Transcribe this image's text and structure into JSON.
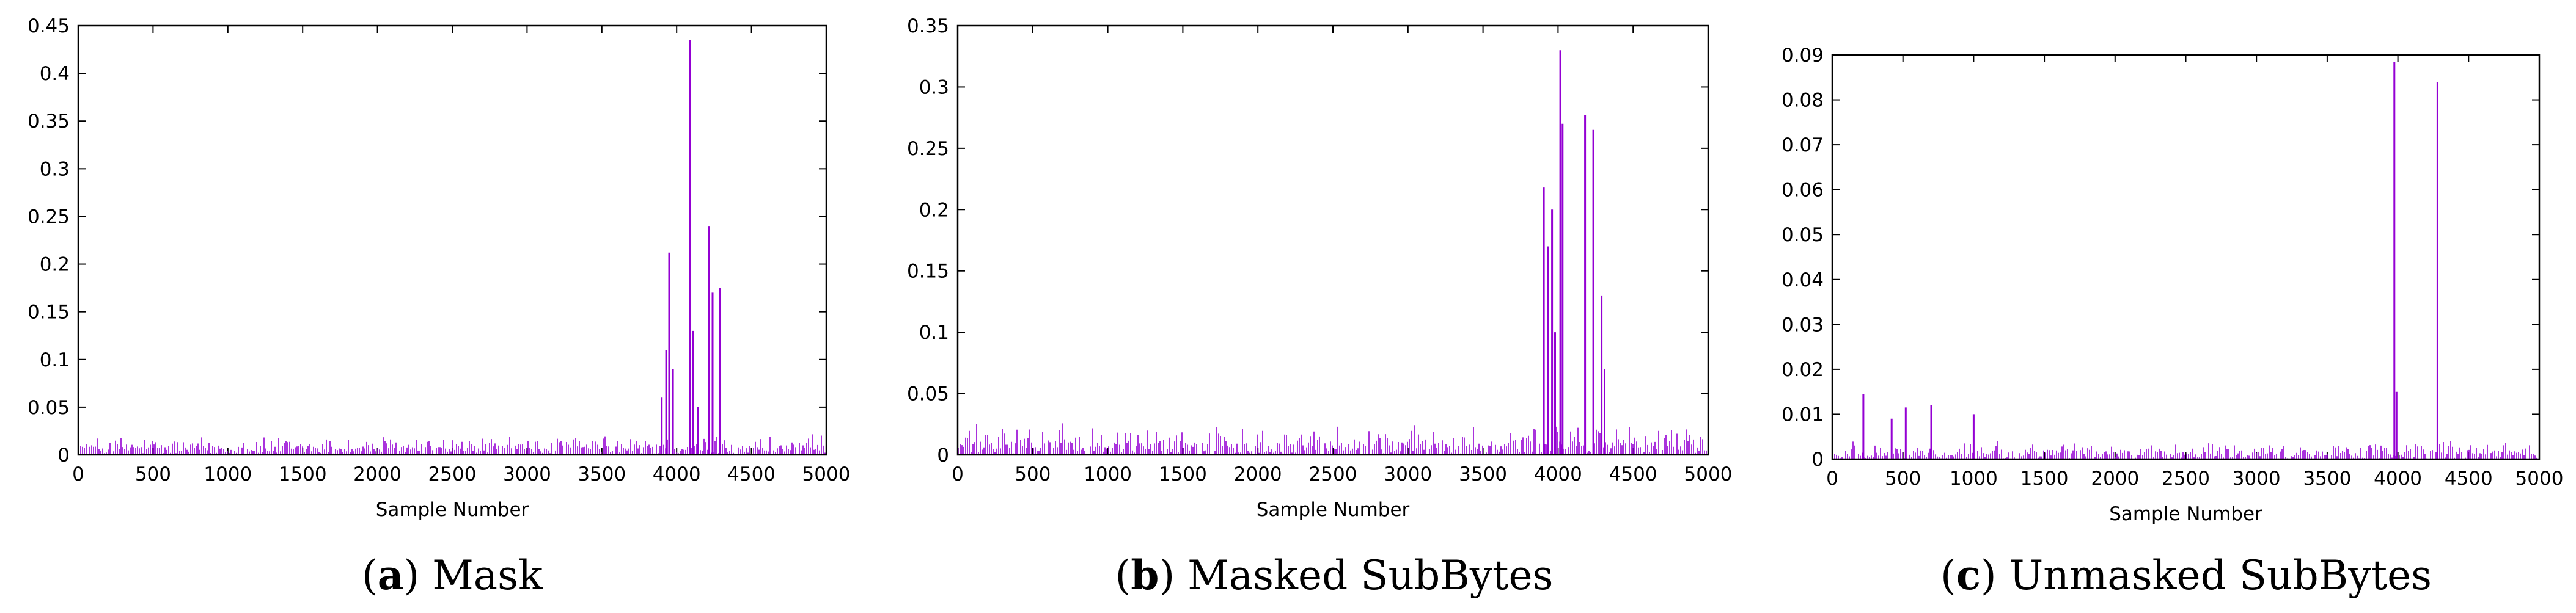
{
  "chart_data": [
    {
      "type": "line",
      "caption_letter": "a",
      "caption_text": "Mask",
      "xlabel": "Sample Number",
      "ylabel": "",
      "xlim": [
        0,
        5000
      ],
      "ylim": [
        0,
        0.45
      ],
      "xticks": [
        "0",
        "500",
        "1000",
        "1500",
        "2000",
        "2500",
        "3000",
        "3500",
        "4000",
        "4500",
        "5000"
      ],
      "yticks": [
        "0",
        "0.05",
        "0.1",
        "0.15",
        "0.2",
        "0.25",
        "0.3",
        "0.35",
        "0.4",
        "0.45"
      ],
      "color": "#9400d3",
      "noise_level": 0.022,
      "peaks": [
        {
          "x": 3900,
          "y": 0.06
        },
        {
          "x": 3930,
          "y": 0.11
        },
        {
          "x": 3950,
          "y": 0.212
        },
        {
          "x": 3975,
          "y": 0.09
        },
        {
          "x": 4090,
          "y": 0.435
        },
        {
          "x": 4110,
          "y": 0.13
        },
        {
          "x": 4215,
          "y": 0.24
        },
        {
          "x": 4240,
          "y": 0.17
        },
        {
          "x": 4290,
          "y": 0.175
        },
        {
          "x": 4140,
          "y": 0.05
        }
      ]
    },
    {
      "type": "line",
      "caption_letter": "b",
      "caption_text": "Masked SubBytes",
      "xlabel": "Sample Number",
      "ylabel": "",
      "xlim": [
        0,
        5000
      ],
      "ylim": [
        0,
        0.35
      ],
      "xticks": [
        "0",
        "500",
        "1000",
        "1500",
        "2000",
        "2500",
        "3000",
        "3500",
        "4000",
        "4500",
        "5000"
      ],
      "yticks": [
        "0",
        "0.05",
        "0.1",
        "0.15",
        "0.2",
        "0.25",
        "0.3",
        "0.35"
      ],
      "color": "#9400d3",
      "noise_level": 0.026,
      "peaks": [
        {
          "x": 3905,
          "y": 0.218
        },
        {
          "x": 3935,
          "y": 0.17
        },
        {
          "x": 3960,
          "y": 0.2
        },
        {
          "x": 3980,
          "y": 0.1
        },
        {
          "x": 4015,
          "y": 0.33
        },
        {
          "x": 4030,
          "y": 0.27
        },
        {
          "x": 4180,
          "y": 0.277
        },
        {
          "x": 4235,
          "y": 0.265
        },
        {
          "x": 4290,
          "y": 0.13
        },
        {
          "x": 4310,
          "y": 0.07
        }
      ]
    },
    {
      "type": "line",
      "caption_letter": "c",
      "caption_text": "Unmasked SubBytes",
      "xlabel": "Sample Number",
      "ylabel": "",
      "xlim": [
        0,
        5000
      ],
      "ylim": [
        0,
        0.09
      ],
      "xticks": [
        "0",
        "500",
        "1000",
        "1500",
        "2000",
        "2500",
        "3000",
        "3500",
        "4000",
        "4500",
        "5000"
      ],
      "yticks": [
        "0",
        "0.01",
        "0.02",
        "0.03",
        "0.04",
        "0.05",
        "0.06",
        "0.07",
        "0.08",
        "0.09"
      ],
      "color": "#9400d3",
      "noise_level": 0.0042,
      "peaks": [
        {
          "x": 220,
          "y": 0.0145
        },
        {
          "x": 420,
          "y": 0.009
        },
        {
          "x": 520,
          "y": 0.0115
        },
        {
          "x": 700,
          "y": 0.012
        },
        {
          "x": 1000,
          "y": 0.01
        },
        {
          "x": 3975,
          "y": 0.0885
        },
        {
          "x": 3990,
          "y": 0.015
        },
        {
          "x": 4280,
          "y": 0.084
        }
      ]
    }
  ]
}
